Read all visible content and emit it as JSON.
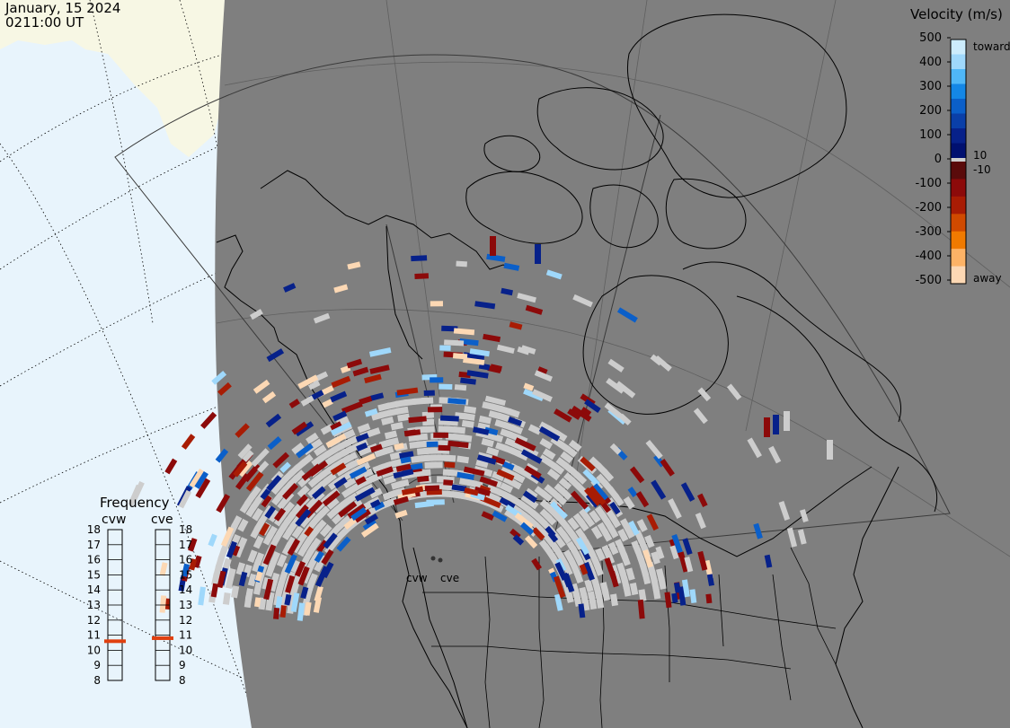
{
  "header": {
    "date": "January, 15 2024",
    "time": "0211:00 UT"
  },
  "colors": {
    "ocean": "#e8f4fc",
    "land_outside": "#f7f7e4",
    "map_gray": "#7f7f7f",
    "ground_scatter": "#cdcdcd",
    "coast": "#000000"
  },
  "legend": {
    "title": "Velocity (m/s)",
    "ticks": [
      "500",
      "400",
      "300",
      "200",
      "100",
      "0",
      "-100",
      "-200",
      "-300",
      "-400",
      "-500"
    ],
    "label_toward": "toward",
    "label_away": "away",
    "label_plus10": "10",
    "label_minus10": "-10",
    "scale_colors": [
      "#ccecfc",
      "#9fd8fb",
      "#4fb7f7",
      "#1487e6",
      "#0b5fc9",
      "#0a3fa8",
      "#07218a",
      "#001070",
      "#5a0b0b",
      "#8c0a0a",
      "#a81c04",
      "#d04a00",
      "#f07a00",
      "#fdb366",
      "#fcd8b4"
    ]
  },
  "frequency": {
    "title": "Frequency",
    "radars": [
      {
        "code": "cvw",
        "value_mhz": 10.6
      },
      {
        "code": "cve",
        "value_mhz": 10.8
      }
    ],
    "scale_left": [
      "18",
      "17",
      "16",
      "15",
      "14",
      "13",
      "12",
      "11",
      "10",
      "9",
      "8"
    ],
    "scale_right": [
      "18",
      "17",
      "16",
      "15",
      "14",
      "13",
      "12",
      "11",
      "10",
      "9",
      "8"
    ],
    "marker_color": "#e04010"
  },
  "sites": {
    "cvw": "cvw",
    "cve": "cve"
  }
}
